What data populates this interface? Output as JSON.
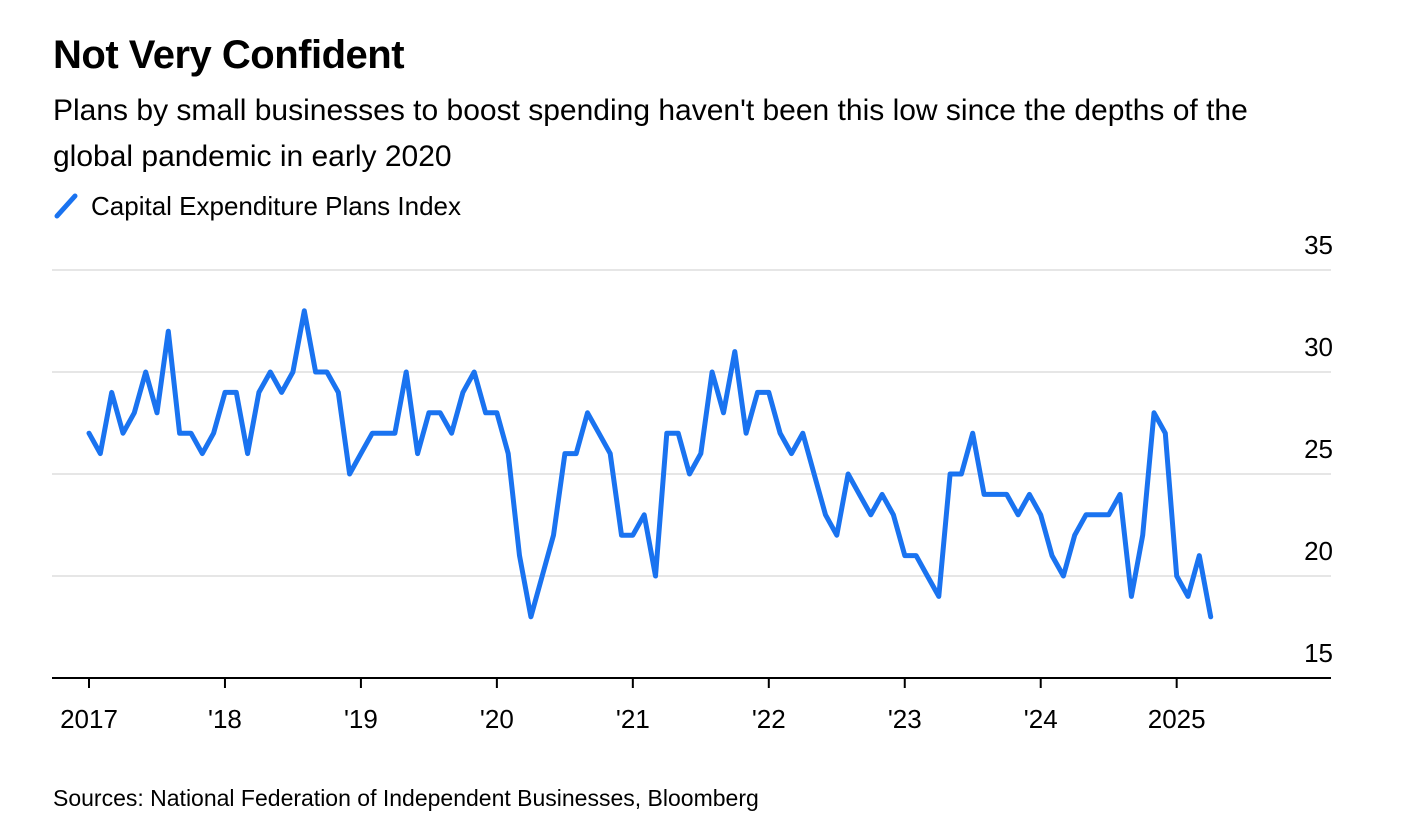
{
  "header": {
    "title": "Not Very Confident",
    "subtitle": "Plans by small businesses to boost spending haven't been this low since the depths of the global pandemic in early 2020"
  },
  "footer": {
    "source": "Sources: National Federation of Independent Businesses, Bloomberg"
  },
  "chart_data": {
    "type": "line",
    "series": [
      {
        "name": "Capital Expenditure Plans Index",
        "color": "#1a73f0",
        "start": "2017-01",
        "frequency": "monthly",
        "values": [
          27,
          26,
          29,
          27,
          28,
          30,
          28,
          32,
          27,
          27,
          26,
          27,
          29,
          29,
          26,
          29,
          30,
          29,
          30,
          33,
          30,
          30,
          29,
          25,
          26,
          27,
          27,
          27,
          30,
          26,
          28,
          28,
          27,
          29,
          30,
          28,
          28,
          26,
          21,
          18,
          20,
          22,
          26,
          26,
          28,
          27,
          26,
          22,
          22,
          23,
          20,
          27,
          27,
          25,
          26,
          30,
          28,
          31,
          27,
          29,
          29,
          27,
          26,
          27,
          25,
          23,
          22,
          25,
          24,
          23,
          24,
          23,
          21,
          21,
          20,
          19,
          25,
          25,
          27,
          24,
          24,
          24,
          23,
          24,
          23,
          21,
          20,
          22,
          23,
          23,
          23,
          24,
          19,
          22,
          28,
          27,
          20,
          19,
          21,
          18
        ]
      }
    ],
    "y_ticks": [
      15,
      20,
      25,
      30,
      35
    ],
    "ylim": [
      15,
      35
    ],
    "x_ticks": [
      {
        "label": "2017",
        "date": "2017-01"
      },
      {
        "label": "'18",
        "date": "2018-01"
      },
      {
        "label": "'19",
        "date": "2019-01"
      },
      {
        "label": "'20",
        "date": "2020-01"
      },
      {
        "label": "'21",
        "date": "2021-01"
      },
      {
        "label": "'22",
        "date": "2022-01"
      },
      {
        "label": "'23",
        "date": "2023-01"
      },
      {
        "label": "'24",
        "date": "2024-01"
      },
      {
        "label": "2025",
        "date": "2025-01"
      }
    ],
    "y_axis_position": "right",
    "grid": true,
    "legend_position": "top-left"
  }
}
